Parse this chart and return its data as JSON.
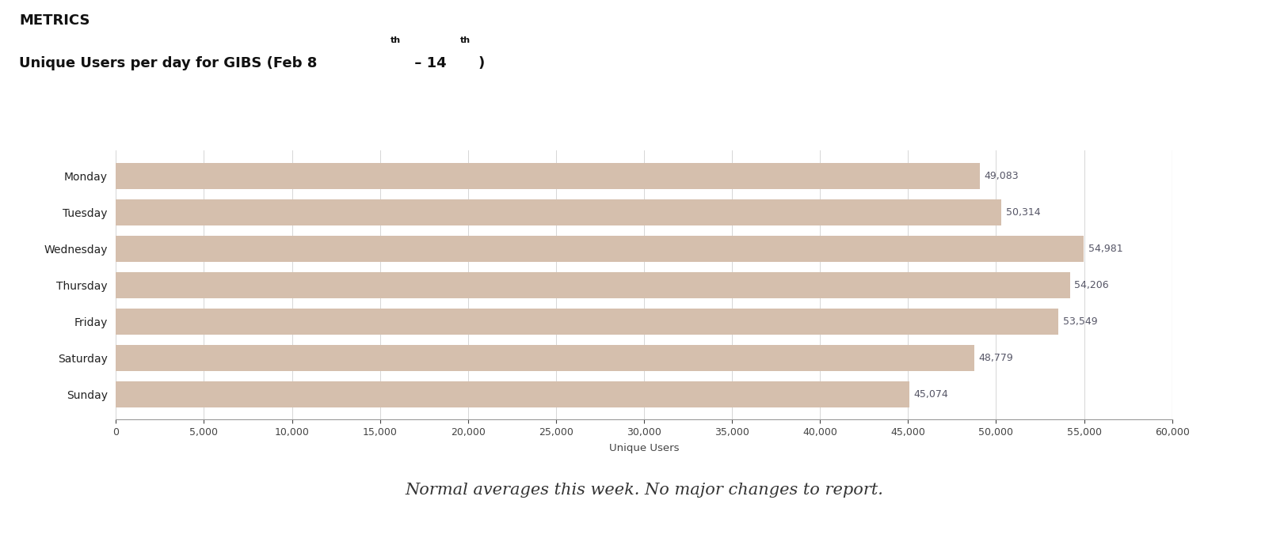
{
  "categories": [
    "Monday",
    "Tuesday",
    "Wednesday",
    "Thursday",
    "Friday",
    "Saturday",
    "Sunday"
  ],
  "values": [
    49083,
    50314,
    54981,
    54206,
    53549,
    48779,
    45074
  ],
  "bar_color": "#d5bfad",
  "value_labels": [
    "49,083",
    "50,314",
    "54,981",
    "54,206",
    "53,549",
    "48,779",
    "45,074"
  ],
  "xlabel": "Unique Users",
  "xlim": [
    0,
    60000
  ],
  "xticks": [
    0,
    5000,
    10000,
    15000,
    20000,
    25000,
    30000,
    35000,
    40000,
    45000,
    50000,
    55000,
    60000
  ],
  "footnote": "Normal averages this week. No major changes to report.",
  "background_color": "#ffffff",
  "label_color": "#555566",
  "tick_label_color": "#444444",
  "value_fontsize": 9,
  "axis_label_fontsize": 9.5,
  "tick_fontsize": 9,
  "footnote_fontsize": 15
}
